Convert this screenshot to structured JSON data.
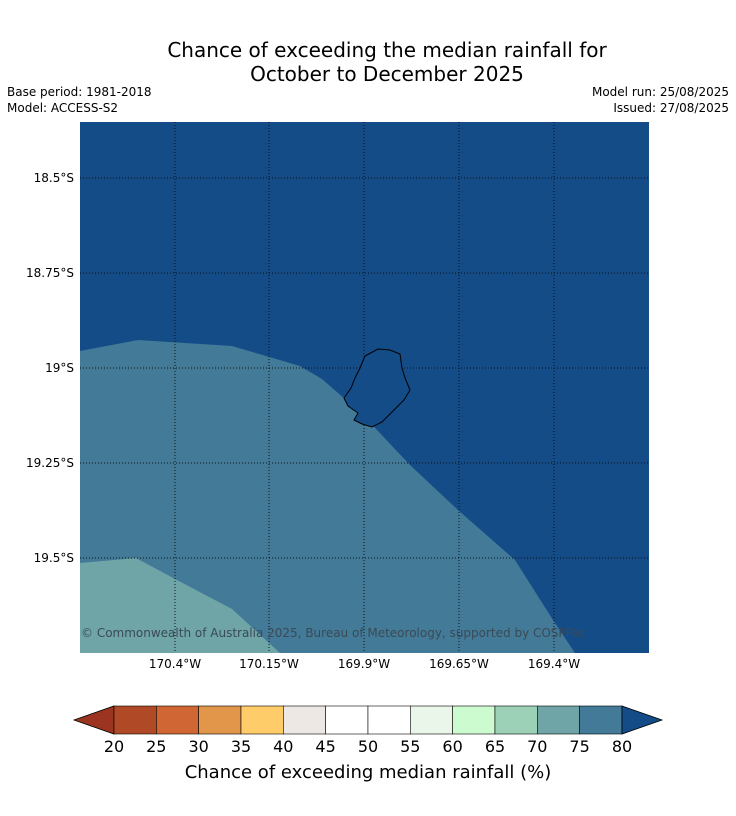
{
  "title_line1": "Chance of exceeding the median rainfall for",
  "title_line2": "October to December 2025",
  "base_period": "Base period: 1981-2018",
  "model": "Model: ACCESS-S2",
  "model_run": "Model run: 25/08/2025",
  "issued": "Issued: 27/08/2025",
  "map": {
    "lat_labels": [
      "18.5°S",
      "18.75°S",
      "19°S",
      "19.25°S",
      "19.5°S"
    ],
    "lon_labels": [
      "170.4°W",
      "170.15°W",
      "169.9°W",
      "169.65°W",
      "169.4°W"
    ],
    "copyright": "© Commonwealth of Australia 2025, Bureau of Meteorology, supported by COSPPac",
    "zone_colors": {
      "above_80": "#134c87",
      "75_80": "#437a98",
      "70_75": "#6fa5a7"
    }
  },
  "colorbar": {
    "ticks": [
      "20",
      "25",
      "30",
      "35",
      "40",
      "45",
      "50",
      "55",
      "60",
      "65",
      "70",
      "75",
      "80"
    ],
    "under_color": "#9b3522",
    "over_color": "#134c87",
    "colors": [
      "#b04926",
      "#cf6634",
      "#e29649",
      "#fecd69",
      "#ede8e4",
      "#ffffff",
      "#ffffff",
      "#e9f6e9",
      "#cbfbcf",
      "#9cd1b8",
      "#6fa5a7",
      "#437a98"
    ],
    "label": "Chance of exceeding median rainfall (%)"
  }
}
